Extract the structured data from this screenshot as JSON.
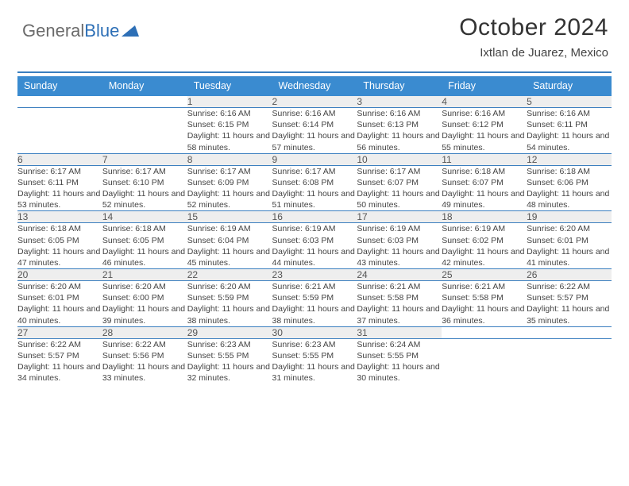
{
  "brand": {
    "part1": "General",
    "part2": "Blue"
  },
  "title": "October 2024",
  "location": "Ixtlan de Juarez, Mexico",
  "colors": {
    "header_bg": "#3a8bd0",
    "rule": "#3a7ebf",
    "daynum_bg": "#eeeeee",
    "text": "#444444",
    "logo_blue": "#2d6fb6"
  },
  "dayHeaders": [
    "Sunday",
    "Monday",
    "Tuesday",
    "Wednesday",
    "Thursday",
    "Friday",
    "Saturday"
  ],
  "weeks": [
    [
      null,
      null,
      {
        "n": "1",
        "sr": "6:16 AM",
        "ss": "6:15 PM",
        "dl": "11 hours and 58 minutes."
      },
      {
        "n": "2",
        "sr": "6:16 AM",
        "ss": "6:14 PM",
        "dl": "11 hours and 57 minutes."
      },
      {
        "n": "3",
        "sr": "6:16 AM",
        "ss": "6:13 PM",
        "dl": "11 hours and 56 minutes."
      },
      {
        "n": "4",
        "sr": "6:16 AM",
        "ss": "6:12 PM",
        "dl": "11 hours and 55 minutes."
      },
      {
        "n": "5",
        "sr": "6:16 AM",
        "ss": "6:11 PM",
        "dl": "11 hours and 54 minutes."
      }
    ],
    [
      {
        "n": "6",
        "sr": "6:17 AM",
        "ss": "6:11 PM",
        "dl": "11 hours and 53 minutes."
      },
      {
        "n": "7",
        "sr": "6:17 AM",
        "ss": "6:10 PM",
        "dl": "11 hours and 52 minutes."
      },
      {
        "n": "8",
        "sr": "6:17 AM",
        "ss": "6:09 PM",
        "dl": "11 hours and 52 minutes."
      },
      {
        "n": "9",
        "sr": "6:17 AM",
        "ss": "6:08 PM",
        "dl": "11 hours and 51 minutes."
      },
      {
        "n": "10",
        "sr": "6:17 AM",
        "ss": "6:07 PM",
        "dl": "11 hours and 50 minutes."
      },
      {
        "n": "11",
        "sr": "6:18 AM",
        "ss": "6:07 PM",
        "dl": "11 hours and 49 minutes."
      },
      {
        "n": "12",
        "sr": "6:18 AM",
        "ss": "6:06 PM",
        "dl": "11 hours and 48 minutes."
      }
    ],
    [
      {
        "n": "13",
        "sr": "6:18 AM",
        "ss": "6:05 PM",
        "dl": "11 hours and 47 minutes."
      },
      {
        "n": "14",
        "sr": "6:18 AM",
        "ss": "6:05 PM",
        "dl": "11 hours and 46 minutes."
      },
      {
        "n": "15",
        "sr": "6:19 AM",
        "ss": "6:04 PM",
        "dl": "11 hours and 45 minutes."
      },
      {
        "n": "16",
        "sr": "6:19 AM",
        "ss": "6:03 PM",
        "dl": "11 hours and 44 minutes."
      },
      {
        "n": "17",
        "sr": "6:19 AM",
        "ss": "6:03 PM",
        "dl": "11 hours and 43 minutes."
      },
      {
        "n": "18",
        "sr": "6:19 AM",
        "ss": "6:02 PM",
        "dl": "11 hours and 42 minutes."
      },
      {
        "n": "19",
        "sr": "6:20 AM",
        "ss": "6:01 PM",
        "dl": "11 hours and 41 minutes."
      }
    ],
    [
      {
        "n": "20",
        "sr": "6:20 AM",
        "ss": "6:01 PM",
        "dl": "11 hours and 40 minutes."
      },
      {
        "n": "21",
        "sr": "6:20 AM",
        "ss": "6:00 PM",
        "dl": "11 hours and 39 minutes."
      },
      {
        "n": "22",
        "sr": "6:20 AM",
        "ss": "5:59 PM",
        "dl": "11 hours and 38 minutes."
      },
      {
        "n": "23",
        "sr": "6:21 AM",
        "ss": "5:59 PM",
        "dl": "11 hours and 38 minutes."
      },
      {
        "n": "24",
        "sr": "6:21 AM",
        "ss": "5:58 PM",
        "dl": "11 hours and 37 minutes."
      },
      {
        "n": "25",
        "sr": "6:21 AM",
        "ss": "5:58 PM",
        "dl": "11 hours and 36 minutes."
      },
      {
        "n": "26",
        "sr": "6:22 AM",
        "ss": "5:57 PM",
        "dl": "11 hours and 35 minutes."
      }
    ],
    [
      {
        "n": "27",
        "sr": "6:22 AM",
        "ss": "5:57 PM",
        "dl": "11 hours and 34 minutes."
      },
      {
        "n": "28",
        "sr": "6:22 AM",
        "ss": "5:56 PM",
        "dl": "11 hours and 33 minutes."
      },
      {
        "n": "29",
        "sr": "6:23 AM",
        "ss": "5:55 PM",
        "dl": "11 hours and 32 minutes."
      },
      {
        "n": "30",
        "sr": "6:23 AM",
        "ss": "5:55 PM",
        "dl": "11 hours and 31 minutes."
      },
      {
        "n": "31",
        "sr": "6:24 AM",
        "ss": "5:55 PM",
        "dl": "11 hours and 30 minutes."
      },
      null,
      null
    ]
  ],
  "labels": {
    "sunrise": "Sunrise:",
    "sunset": "Sunset:",
    "daylight": "Daylight:"
  }
}
